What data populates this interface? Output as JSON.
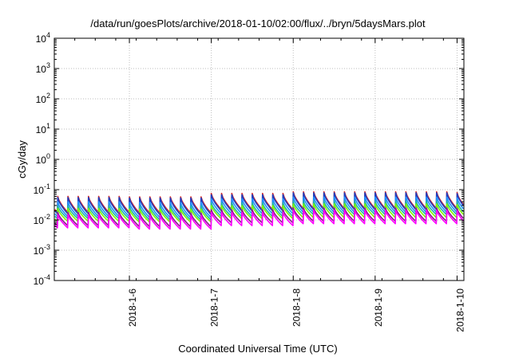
{
  "chart_data": {
    "type": "line",
    "title": "/data/run/goesPlots/archive/2018-01-10/02:00/flux/../bryn/5daysMars.plot",
    "xlabel": "Coordinated Universal Time (UTC)",
    "ylabel": "cGy/day",
    "y_scale": "log",
    "ylim": [
      0.0001,
      10000
    ],
    "y_ticks": [
      {
        "base": "10",
        "exp": "-4",
        "value": 0.0001
      },
      {
        "base": "10",
        "exp": "-3",
        "value": 0.001
      },
      {
        "base": "10",
        "exp": "-2",
        "value": 0.01
      },
      {
        "base": "10",
        "exp": "-1",
        "value": 0.1
      },
      {
        "base": "10",
        "exp": "0",
        "value": 1
      },
      {
        "base": "10",
        "exp": "1",
        "value": 10
      },
      {
        "base": "10",
        "exp": "2",
        "value": 100
      },
      {
        "base": "10",
        "exp": "3",
        "value": 1000
      },
      {
        "base": "10",
        "exp": "4",
        "value": 10000
      }
    ],
    "xlim": [
      "2018-01-05 02:00",
      "2018-01-10 02:00"
    ],
    "x_ticks": [
      "2018-1-6",
      "2018-1-7",
      "2018-1-8",
      "2018-1-9",
      "2018-1-10"
    ],
    "grid": true,
    "cycle_hours": 3,
    "series": [
      {
        "color": "#d62728",
        "max_by_day": {
          "2018-01-05": 0.06,
          "2018-01-06": 0.058,
          "2018-01-07": 0.075,
          "2018-01-08": 0.085,
          "2018-01-09": 0.085,
          "2018-01-10": 0.08
        },
        "min_by_day": {
          "2018-01-05": 0.018,
          "2018-01-06": 0.017,
          "2018-01-07": 0.022,
          "2018-01-08": 0.024,
          "2018-01-09": 0.024,
          "2018-01-10": 0.023
        }
      },
      {
        "color": "#1f3fbf",
        "max_by_day": {
          "2018-01-05": 0.055,
          "2018-01-06": 0.053,
          "2018-01-07": 0.068,
          "2018-01-08": 0.078,
          "2018-01-09": 0.078,
          "2018-01-10": 0.074
        },
        "min_by_day": {
          "2018-01-05": 0.016,
          "2018-01-06": 0.015,
          "2018-01-07": 0.02,
          "2018-01-08": 0.022,
          "2018-01-09": 0.022,
          "2018-01-10": 0.021
        }
      },
      {
        "color": "#1e90ff",
        "max_by_day": {
          "2018-01-05": 0.04,
          "2018-01-06": 0.038,
          "2018-01-07": 0.05,
          "2018-01-08": 0.057,
          "2018-01-09": 0.057,
          "2018-01-10": 0.054
        },
        "min_by_day": {
          "2018-01-05": 0.013,
          "2018-01-06": 0.012,
          "2018-01-07": 0.016,
          "2018-01-08": 0.018,
          "2018-01-09": 0.018,
          "2018-01-10": 0.017
        }
      },
      {
        "color": "#20b2aa",
        "max_by_day": {
          "2018-01-05": 0.03,
          "2018-01-06": 0.029,
          "2018-01-07": 0.037,
          "2018-01-08": 0.042,
          "2018-01-09": 0.042,
          "2018-01-10": 0.04
        },
        "min_by_day": {
          "2018-01-05": 0.011,
          "2018-01-06": 0.01,
          "2018-01-07": 0.013,
          "2018-01-08": 0.015,
          "2018-01-09": 0.015,
          "2018-01-10": 0.014
        }
      },
      {
        "color": "#7cfc00",
        "max_by_day": {
          "2018-01-05": 0.024,
          "2018-01-06": 0.023,
          "2018-01-07": 0.03,
          "2018-01-08": 0.034,
          "2018-01-09": 0.034,
          "2018-01-10": 0.032
        },
        "min_by_day": {
          "2018-01-05": 0.009,
          "2018-01-06": 0.0085,
          "2018-01-07": 0.011,
          "2018-01-08": 0.012,
          "2018-01-09": 0.012,
          "2018-01-10": 0.0115
        }
      },
      {
        "color": "#8b1a8b",
        "max_by_day": {
          "2018-01-05": 0.018,
          "2018-01-06": 0.017,
          "2018-01-07": 0.022,
          "2018-01-08": 0.025,
          "2018-01-09": 0.025,
          "2018-01-10": 0.024
        },
        "min_by_day": {
          "2018-01-05": 0.0065,
          "2018-01-06": 0.006,
          "2018-01-07": 0.008,
          "2018-01-08": 0.009,
          "2018-01-09": 0.009,
          "2018-01-10": 0.0085
        }
      },
      {
        "color": "#ff00ff",
        "max_by_day": {
          "2018-01-05": 0.015,
          "2018-01-06": 0.014,
          "2018-01-07": 0.018,
          "2018-01-08": 0.021,
          "2018-01-09": 0.021,
          "2018-01-10": 0.02
        },
        "min_by_day": {
          "2018-01-05": 0.0055,
          "2018-01-06": 0.005,
          "2018-01-07": 0.0065,
          "2018-01-08": 0.0075,
          "2018-01-09": 0.0075,
          "2018-01-10": 0.007
        }
      }
    ]
  }
}
